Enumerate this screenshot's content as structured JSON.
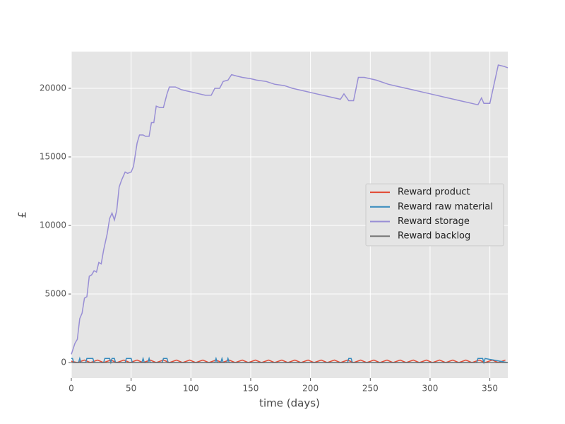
{
  "chart_data": {
    "type": "line",
    "xlabel": "time (days)",
    "ylabel": "£",
    "xlim": [
      0,
      365
    ],
    "xticks": [
      0,
      50,
      100,
      150,
      200,
      250,
      300,
      350
    ],
    "ylim": [
      -1130,
      22680
    ],
    "yticks": [
      0,
      5000,
      10000,
      15000,
      20000
    ],
    "grid": true,
    "legend": "center right",
    "series": [
      {
        "name": "Reward product",
        "color": "#E24A33",
        "x": [
          0,
          5,
          11,
          16,
          22,
          27,
          33,
          38,
          44,
          49,
          55,
          60,
          66,
          71,
          77,
          82,
          88,
          93,
          99,
          104,
          110,
          115,
          121,
          126,
          132,
          137,
          143,
          148,
          154,
          159,
          165,
          170,
          176,
          181,
          187,
          192,
          198,
          203,
          209,
          214,
          220,
          225,
          231,
          236,
          242,
          247,
          253,
          258,
          264,
          269,
          275,
          280,
          286,
          291,
          297,
          302,
          308,
          313,
          319,
          324,
          330,
          335,
          341,
          346,
          352,
          357,
          363
        ],
        "values": [
          100,
          0,
          180,
          0,
          180,
          0,
          180,
          0,
          180,
          0,
          180,
          0,
          180,
          0,
          180,
          0,
          180,
          0,
          180,
          0,
          180,
          0,
          180,
          0,
          180,
          0,
          180,
          0,
          180,
          0,
          180,
          0,
          180,
          0,
          180,
          0,
          180,
          0,
          180,
          0,
          180,
          0,
          180,
          0,
          180,
          0,
          180,
          0,
          180,
          0,
          180,
          0,
          180,
          0,
          180,
          0,
          180,
          0,
          180,
          0,
          180,
          0,
          180,
          0,
          180,
          0,
          180
        ]
      },
      {
        "name": "Reward raw material",
        "color": "#348ABD",
        "x": [
          0,
          1,
          2,
          6,
          7,
          8,
          12,
          13,
          17,
          18,
          19,
          27,
          28,
          32,
          33,
          34,
          36,
          37,
          45,
          46,
          50,
          51,
          59,
          60,
          61,
          64,
          65,
          66,
          76,
          77,
          80,
          81,
          120,
          121,
          122,
          125,
          126,
          127,
          130,
          131,
          132,
          231,
          232,
          234,
          235,
          339,
          340,
          344,
          345,
          346,
          365
        ],
        "values": [
          300,
          300,
          0,
          0,
          300,
          0,
          0,
          300,
          300,
          300,
          0,
          0,
          300,
          300,
          0,
          300,
          300,
          0,
          0,
          300,
          300,
          0,
          0,
          300,
          0,
          0,
          300,
          0,
          0,
          300,
          300,
          0,
          0,
          300,
          0,
          0,
          300,
          0,
          0,
          300,
          0,
          0,
          300,
          300,
          0,
          0,
          300,
          300,
          0,
          300,
          0
        ]
      },
      {
        "name": "Reward storage",
        "color": "#988ED5",
        "x": [
          0,
          3,
          5,
          7,
          9,
          11,
          13,
          15,
          17,
          19,
          21,
          23,
          25,
          27,
          30,
          32,
          34,
          36,
          38,
          40,
          42,
          45,
          47,
          50,
          52,
          55,
          57,
          60,
          62,
          65,
          67,
          69,
          71,
          74,
          77,
          80,
          82,
          87,
          92,
          97,
          102,
          107,
          112,
          117,
          120,
          124,
          127,
          131,
          134,
          138,
          143,
          150,
          155,
          163,
          170,
          178,
          185,
          195,
          205,
          215,
          225,
          228,
          232,
          236,
          240,
          245,
          255,
          265,
          275,
          285,
          295,
          305,
          315,
          325,
          335,
          340,
          343,
          345,
          350,
          354,
          357,
          362,
          365
        ],
        "values": [
          600,
          1400,
          1700,
          3200,
          3600,
          4700,
          4800,
          6300,
          6400,
          6700,
          6600,
          7300,
          7200,
          8200,
          9400,
          10500,
          10900,
          10400,
          11100,
          12800,
          13300,
          13900,
          13800,
          13900,
          14300,
          16000,
          16600,
          16600,
          16500,
          16500,
          17500,
          17500,
          18700,
          18600,
          18600,
          19600,
          20100,
          20100,
          19900,
          19800,
          19700,
          19600,
          19500,
          19500,
          20000,
          20000,
          20500,
          20600,
          21000,
          20900,
          20800,
          20700,
          20600,
          20500,
          20300,
          20200,
          20000,
          19800,
          19600,
          19400,
          19200,
          19600,
          19100,
          19100,
          20800,
          20800,
          20600,
          20300,
          20100,
          19900,
          19700,
          19500,
          19300,
          19100,
          18900,
          18800,
          19300,
          18900,
          18900,
          20500,
          21700,
          21600,
          21500
        ]
      },
      {
        "name": "Reward backlog",
        "color": "#777777",
        "x": [
          0,
          365
        ],
        "values": [
          0,
          0
        ]
      }
    ]
  }
}
